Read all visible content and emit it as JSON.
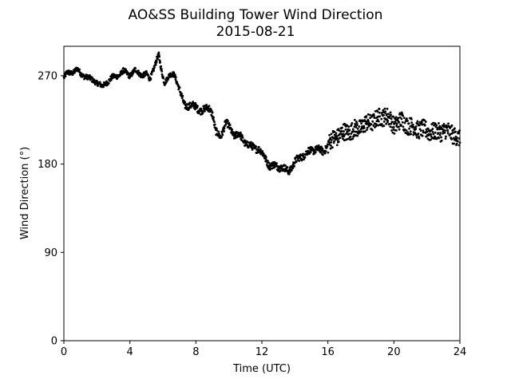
{
  "chart_data": {
    "type": "scatter",
    "title": "AO&SS Building Tower Wind Direction",
    "subtitle": "2015-08-21",
    "xlabel": "Time (UTC)",
    "ylabel": "Wind Direction (°)",
    "xlim": [
      0,
      24
    ],
    "ylim": [
      0,
      300
    ],
    "xticks": [
      0,
      4,
      8,
      12,
      16,
      20,
      24
    ],
    "yticks": [
      0,
      90,
      180,
      270
    ],
    "grid": false,
    "marker_color": "#000000",
    "anchors": [
      [
        0.0,
        268
      ],
      [
        0.2,
        272
      ],
      [
        0.5,
        274
      ],
      [
        0.8,
        276
      ],
      [
        1.0,
        272
      ],
      [
        1.3,
        270
      ],
      [
        1.6,
        266
      ],
      [
        1.9,
        265
      ],
      [
        2.1,
        262
      ],
      [
        2.3,
        258
      ],
      [
        2.6,
        264
      ],
      [
        3.0,
        268
      ],
      [
        3.3,
        271
      ],
      [
        3.6,
        274
      ],
      [
        4.0,
        271
      ],
      [
        4.3,
        275
      ],
      [
        4.6,
        272
      ],
      [
        5.0,
        271
      ],
      [
        5.2,
        266
      ],
      [
        5.4,
        276
      ],
      [
        5.6,
        285
      ],
      [
        5.75,
        290
      ],
      [
        5.9,
        276
      ],
      [
        6.1,
        264
      ],
      [
        6.3,
        268
      ],
      [
        6.5,
        270
      ],
      [
        6.7,
        272
      ],
      [
        6.9,
        262
      ],
      [
        7.1,
        250
      ],
      [
        7.3,
        240
      ],
      [
        7.6,
        240
      ],
      [
        8.0,
        238
      ],
      [
        8.4,
        234
      ],
      [
        8.8,
        238
      ],
      [
        9.0,
        232
      ],
      [
        9.2,
        212
      ],
      [
        9.5,
        208
      ],
      [
        9.8,
        222
      ],
      [
        10.0,
        218
      ],
      [
        10.3,
        210
      ],
      [
        10.6,
        210
      ],
      [
        11.0,
        202
      ],
      [
        11.4,
        197
      ],
      [
        11.8,
        196
      ],
      [
        12.2,
        186
      ],
      [
        12.5,
        178
      ],
      [
        12.8,
        178
      ],
      [
        13.2,
        177
      ],
      [
        13.6,
        172
      ],
      [
        14.0,
        182
      ],
      [
        14.4,
        188
      ],
      [
        14.8,
        192
      ],
      [
        15.3,
        196
      ],
      [
        15.7,
        192
      ],
      [
        16.0,
        200
      ],
      [
        16.5,
        208
      ],
      [
        17.0,
        212
      ],
      [
        17.5,
        214
      ],
      [
        18.0,
        218
      ],
      [
        18.5,
        222
      ],
      [
        19.0,
        226
      ],
      [
        19.5,
        230
      ],
      [
        20.0,
        220
      ],
      [
        20.5,
        224
      ],
      [
        21.0,
        218
      ],
      [
        21.5,
        216
      ],
      [
        22.0,
        214
      ],
      [
        22.5,
        212
      ],
      [
        23.0,
        214
      ],
      [
        23.5,
        212
      ],
      [
        24.0,
        204
      ]
    ]
  }
}
